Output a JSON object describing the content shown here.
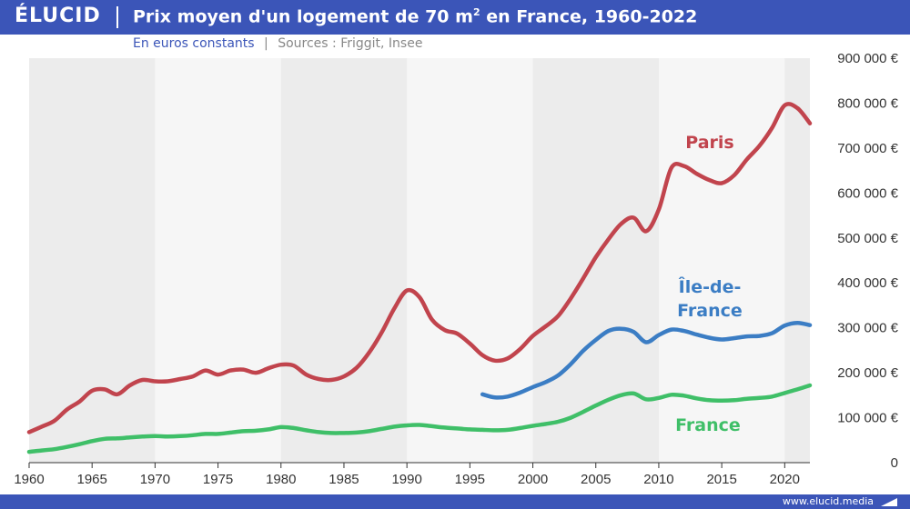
{
  "header": {
    "logo": "ÉLUCID",
    "title_main": "Prix moyen d'un logement de 70 m",
    "title_sup": "2",
    "title_end": " en France, 1960-2022"
  },
  "subtitle": {
    "unit": "En euros constants",
    "separator": "|",
    "sources": "Sources : Friggit, Insee"
  },
  "footer": {
    "site": "www.elucid.media"
  },
  "colors": {
    "paris": "#c1444d",
    "idf": "#3b7dc4",
    "france": "#3fbf68",
    "brand": "#3b55b8"
  },
  "chart_data": {
    "type": "line",
    "title": "Prix moyen d'un logement de 70 m² en France, 1960-2022",
    "subtitle": "En euros constants",
    "xlim": [
      1960,
      2022
    ],
    "ylim": [
      0,
      900000
    ],
    "x_ticks": [
      1960,
      1965,
      1970,
      1975,
      1980,
      1985,
      1990,
      1995,
      2000,
      2005,
      2010,
      2015,
      2020
    ],
    "y_ticks": [
      0,
      100000,
      200000,
      300000,
      400000,
      500000,
      600000,
      700000,
      800000,
      900000
    ],
    "y_tick_labels": [
      "0",
      "100 000 €",
      "200 000 €",
      "300 000 €",
      "400 000 €",
      "500 000 €",
      "600 000 €",
      "700 000 €",
      "800 000 €",
      "900 000 €"
    ],
    "y_axis_position": "right",
    "series": [
      {
        "name": "Paris",
        "label_lines": [
          "Paris"
        ],
        "color": "#c1444d",
        "points": [
          [
            1960,
            68000
          ],
          [
            1961,
            80000
          ],
          [
            1962,
            93000
          ],
          [
            1963,
            118000
          ],
          [
            1964,
            136000
          ],
          [
            1965,
            160000
          ],
          [
            1966,
            163000
          ],
          [
            1967,
            152000
          ],
          [
            1968,
            172000
          ],
          [
            1969,
            184000
          ],
          [
            1970,
            181000
          ],
          [
            1971,
            181000
          ],
          [
            1972,
            186000
          ],
          [
            1973,
            192000
          ],
          [
            1974,
            205000
          ],
          [
            1975,
            196000
          ],
          [
            1976,
            205000
          ],
          [
            1977,
            207000
          ],
          [
            1978,
            200000
          ],
          [
            1979,
            210000
          ],
          [
            1980,
            218000
          ],
          [
            1981,
            216000
          ],
          [
            1982,
            196000
          ],
          [
            1983,
            186000
          ],
          [
            1984,
            184000
          ],
          [
            1985,
            192000
          ],
          [
            1986,
            211000
          ],
          [
            1987,
            245000
          ],
          [
            1988,
            290000
          ],
          [
            1989,
            343000
          ],
          [
            1990,
            383000
          ],
          [
            1991,
            368000
          ],
          [
            1992,
            318000
          ],
          [
            1993,
            295000
          ],
          [
            1994,
            287000
          ],
          [
            1995,
            265000
          ],
          [
            1996,
            239000
          ],
          [
            1997,
            227000
          ],
          [
            1998,
            232000
          ],
          [
            1999,
            253000
          ],
          [
            2000,
            282000
          ],
          [
            2001,
            303000
          ],
          [
            2002,
            326000
          ],
          [
            2003,
            365000
          ],
          [
            2004,
            410000
          ],
          [
            2005,
            457000
          ],
          [
            2006,
            497000
          ],
          [
            2007,
            531000
          ],
          [
            2008,
            545000
          ],
          [
            2009,
            515000
          ],
          [
            2010,
            563000
          ],
          [
            2011,
            656000
          ],
          [
            2012,
            660000
          ],
          [
            2013,
            643000
          ],
          [
            2014,
            629000
          ],
          [
            2015,
            622000
          ],
          [
            2016,
            640000
          ],
          [
            2017,
            675000
          ],
          [
            2018,
            705000
          ],
          [
            2019,
            745000
          ],
          [
            2020,
            795000
          ],
          [
            2021,
            789000
          ],
          [
            2022,
            755000
          ]
        ]
      },
      {
        "name": "Île-de-France",
        "label_lines": [
          "Île-de-",
          "France"
        ],
        "color": "#3b7dc4",
        "points": [
          [
            1996,
            152000
          ],
          [
            1997,
            145000
          ],
          [
            1998,
            147000
          ],
          [
            1999,
            156000
          ],
          [
            2000,
            168000
          ],
          [
            2001,
            179000
          ],
          [
            2002,
            194000
          ],
          [
            2003,
            219000
          ],
          [
            2004,
            249000
          ],
          [
            2005,
            273000
          ],
          [
            2006,
            293000
          ],
          [
            2007,
            298000
          ],
          [
            2008,
            291000
          ],
          [
            2009,
            268000
          ],
          [
            2010,
            284000
          ],
          [
            2011,
            296000
          ],
          [
            2012,
            293000
          ],
          [
            2013,
            285000
          ],
          [
            2014,
            278000
          ],
          [
            2015,
            274000
          ],
          [
            2016,
            277000
          ],
          [
            2017,
            281000
          ],
          [
            2018,
            282000
          ],
          [
            2019,
            288000
          ],
          [
            2020,
            305000
          ],
          [
            2021,
            311000
          ],
          [
            2022,
            306000
          ]
        ]
      },
      {
        "name": "France",
        "label_lines": [
          "France"
        ],
        "color": "#3fbf68",
        "points": [
          [
            1960,
            24000
          ],
          [
            1961,
            27000
          ],
          [
            1962,
            30000
          ],
          [
            1963,
            35000
          ],
          [
            1964,
            41000
          ],
          [
            1965,
            48000
          ],
          [
            1966,
            53000
          ],
          [
            1967,
            54000
          ],
          [
            1968,
            56000
          ],
          [
            1969,
            58000
          ],
          [
            1970,
            59000
          ],
          [
            1971,
            58000
          ],
          [
            1972,
            59000
          ],
          [
            1973,
            61000
          ],
          [
            1974,
            64000
          ],
          [
            1975,
            64000
          ],
          [
            1976,
            67000
          ],
          [
            1977,
            70000
          ],
          [
            1978,
            71000
          ],
          [
            1979,
            74000
          ],
          [
            1980,
            79000
          ],
          [
            1981,
            77000
          ],
          [
            1982,
            72000
          ],
          [
            1983,
            68000
          ],
          [
            1984,
            66000
          ],
          [
            1985,
            66000
          ],
          [
            1986,
            67000
          ],
          [
            1987,
            70000
          ],
          [
            1988,
            75000
          ],
          [
            1989,
            80000
          ],
          [
            1990,
            83000
          ],
          [
            1991,
            84000
          ],
          [
            1992,
            81000
          ],
          [
            1993,
            78000
          ],
          [
            1994,
            76000
          ],
          [
            1995,
            74000
          ],
          [
            1996,
            73000
          ],
          [
            1997,
            72000
          ],
          [
            1998,
            73000
          ],
          [
            1999,
            77000
          ],
          [
            2000,
            82000
          ],
          [
            2001,
            86000
          ],
          [
            2002,
            91000
          ],
          [
            2003,
            100000
          ],
          [
            2004,
            113000
          ],
          [
            2005,
            127000
          ],
          [
            2006,
            140000
          ],
          [
            2007,
            150000
          ],
          [
            2008,
            154000
          ],
          [
            2009,
            141000
          ],
          [
            2010,
            144000
          ],
          [
            2011,
            151000
          ],
          [
            2012,
            149000
          ],
          [
            2013,
            143000
          ],
          [
            2014,
            139000
          ],
          [
            2015,
            138000
          ],
          [
            2016,
            139000
          ],
          [
            2017,
            142000
          ],
          [
            2018,
            144000
          ],
          [
            2019,
            147000
          ],
          [
            2020,
            155000
          ],
          [
            2021,
            163000
          ],
          [
            2022,
            172000
          ]
        ]
      }
    ],
    "background_bands": [
      [
        1960,
        1970
      ],
      [
        1980,
        1990
      ],
      [
        2000,
        2010
      ],
      [
        2020,
        2022
      ]
    ]
  }
}
